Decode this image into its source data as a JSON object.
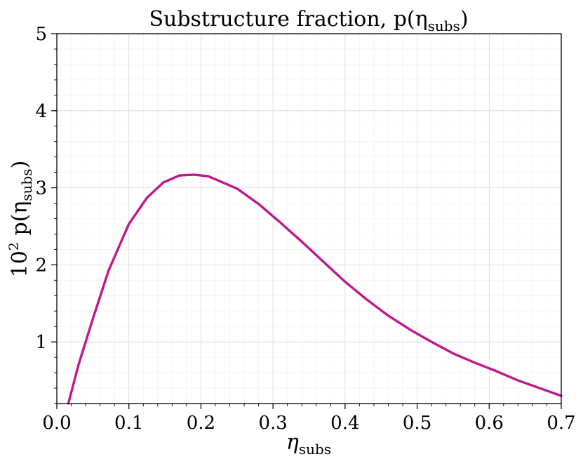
{
  "chart_data": {
    "type": "line",
    "title": "Substructure fraction,  p(η",
    "title_sub": "subs",
    "title_tail": ")",
    "xlabel": "η",
    "xlabel_sub": "subs",
    "ylabel_prefix": "10",
    "ylabel_sup": "2",
    "ylabel_mid": " p(η",
    "ylabel_sub": "subs",
    "ylabel_tail": ")",
    "xlim": [
      0.0,
      0.7
    ],
    "ylim": [
      0.2,
      5.0
    ],
    "xticks": [
      0.0,
      0.1,
      0.2,
      0.3,
      0.4,
      0.5,
      0.6,
      0.7
    ],
    "xtick_labels": [
      "0.0",
      "0.1",
      "0.2",
      "0.3",
      "0.4",
      "0.5",
      "0.6",
      "0.7"
    ],
    "yticks": [
      1,
      2,
      3,
      4,
      5
    ],
    "ytick_labels": [
      "1",
      "2",
      "3",
      "4",
      "5"
    ],
    "grid": true,
    "colors": {
      "line": "#c0178c"
    },
    "series": [
      {
        "x": [
          0.016,
          0.03,
          0.05,
          0.072,
          0.1,
          0.125,
          0.148,
          0.17,
          0.19,
          0.21,
          0.25,
          0.28,
          0.31,
          0.34,
          0.37,
          0.4,
          0.43,
          0.46,
          0.49,
          0.52,
          0.55,
          0.58,
          0.61,
          0.64,
          0.67,
          0.7
        ],
        "y": [
          0.2,
          0.7,
          1.3,
          1.93,
          2.53,
          2.87,
          3.07,
          3.16,
          3.17,
          3.15,
          2.99,
          2.79,
          2.55,
          2.3,
          2.04,
          1.78,
          1.55,
          1.34,
          1.16,
          1.0,
          0.85,
          0.73,
          0.62,
          0.5,
          0.4,
          0.3
        ]
      }
    ]
  }
}
